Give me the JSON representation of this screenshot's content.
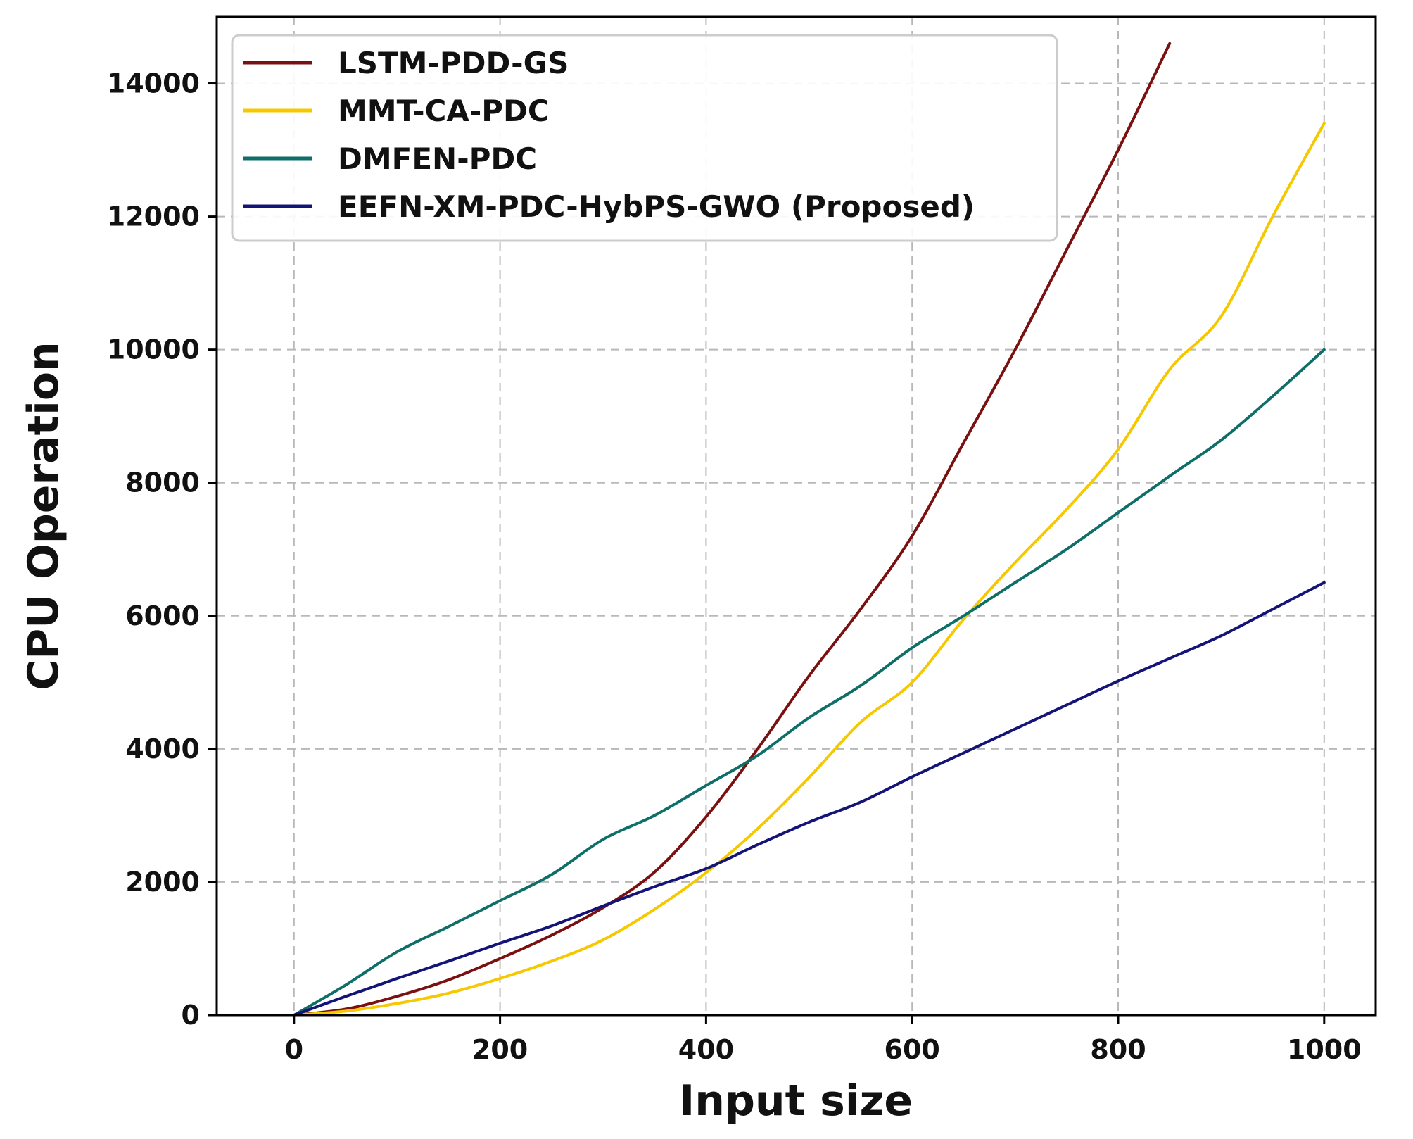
{
  "chart_data": {
    "type": "line",
    "title": "",
    "xlabel": "Input size",
    "ylabel": "CPU Operation",
    "xlim": [
      -75,
      1050
    ],
    "ylim": [
      0,
      15000
    ],
    "xticks": [
      0,
      200,
      400,
      600,
      800,
      1000
    ],
    "yticks": [
      0,
      2000,
      4000,
      6000,
      8000,
      10000,
      12000,
      14000
    ],
    "grid": true,
    "legend_position": "top-left",
    "x": [
      0,
      50,
      100,
      150,
      200,
      250,
      300,
      350,
      400,
      450,
      500,
      550,
      600,
      650,
      700,
      750,
      800,
      850,
      900,
      950,
      1000
    ],
    "series": [
      {
        "name": "LSTM-PDD-GS",
        "color": "#7a1010",
        "values": [
          0,
          90,
          283,
          529,
          849,
          1200,
          1615,
          2150,
          2980,
          4000,
          5100,
          6100,
          7200,
          8600,
          10000,
          11500,
          13000,
          14600,
          null,
          null,
          null
        ]
      },
      {
        "name": "MMT-CA-PDC",
        "color": "#f5c800",
        "values": [
          0,
          60,
          175,
          330,
          550,
          810,
          1130,
          1590,
          2140,
          2800,
          3570,
          4400,
          5000,
          5950,
          6800,
          7600,
          8500,
          9700,
          10500,
          12000,
          13400
        ]
      },
      {
        "name": "DMFEN-PDC",
        "color": "#0e6e68",
        "values": [
          0,
          450,
          950,
          1330,
          1720,
          2110,
          2640,
          3000,
          3450,
          3900,
          4470,
          4950,
          5520,
          6000,
          6500,
          7000,
          7550,
          8100,
          8640,
          9300,
          10000
        ]
      },
      {
        "name": "EEFN-XM-PDC-HybPS-GWO (Proposed)",
        "color": "#141478",
        "values": [
          0,
          280,
          550,
          810,
          1080,
          1340,
          1640,
          1930,
          2200,
          2560,
          2900,
          3200,
          3580,
          3940,
          4300,
          4660,
          5020,
          5360,
          5700,
          6100,
          6500
        ]
      }
    ]
  }
}
